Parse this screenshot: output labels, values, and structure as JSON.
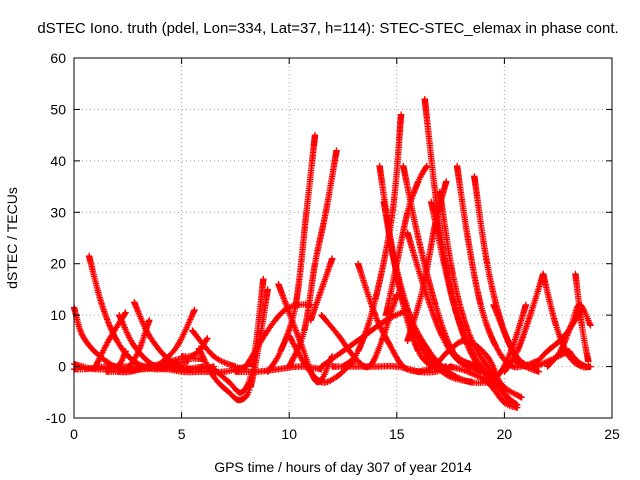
{
  "chart_data": {
    "type": "scatter",
    "title": "dSTEC Iono. truth (pdel, Lon=334, Lat=37, h=114): STEC-STEC_elemax in phase cont.",
    "xlabel": "GPS time / hours of day 307 of year 2014",
    "ylabel": "dSTEC  / TECUs",
    "xlim": [
      0,
      25
    ],
    "ylim": [
      -10,
      60
    ],
    "xticks": [
      "0",
      "5",
      "10",
      "15",
      "20",
      "25"
    ],
    "yticks": [
      "-10",
      "0",
      "10",
      "20",
      "30",
      "40",
      "50",
      "60"
    ],
    "grid": true,
    "marker": "+",
    "color": "#ff0000",
    "arcs": [
      {
        "x": [
          0.0,
          1.0,
          2.0,
          2.4
        ],
        "y": [
          0.5,
          -0.5,
          0,
          3
        ]
      },
      {
        "x": [
          0.0,
          0.5,
          1.5,
          2.5,
          3.5
        ],
        "y": [
          -0.5,
          -0.5,
          0,
          0,
          0
        ]
      },
      {
        "x": [
          0.0,
          0.4,
          1.2,
          2.2,
          3.2,
          4.5
        ],
        "y": [
          11.5,
          6,
          2,
          -0.5,
          -0.5,
          0
        ]
      },
      {
        "x": [
          0.7,
          1.3,
          2.0,
          2.8,
          3.8,
          4.8
        ],
        "y": [
          21.5,
          12,
          5,
          1,
          -0.5,
          0
        ]
      },
      {
        "x": [
          1.0,
          1.6,
          2.4
        ],
        "y": [
          0,
          5,
          10.5
        ]
      },
      {
        "x": [
          1.5,
          2.0,
          2.6,
          3.5,
          4.5,
          5.3
        ],
        "y": [
          -1,
          -1,
          -1,
          0,
          0.5,
          1
        ]
      },
      {
        "x": [
          2.1,
          2.8,
          3.8,
          5.0,
          6.0
        ],
        "y": [
          10,
          4,
          0,
          -0.5,
          0
        ]
      },
      {
        "x": [
          2.8,
          3.5,
          4.5,
          5.5,
          6.5
        ],
        "y": [
          12.5,
          6,
          1,
          -0.5,
          0
        ]
      },
      {
        "x": [
          2.5,
          3.0,
          3.5
        ],
        "y": [
          -0.5,
          3,
          9
        ]
      },
      {
        "x": [
          3.0,
          4.0,
          5.0,
          6.0
        ],
        "y": [
          -0.5,
          0.5,
          1.5,
          1.5
        ]
      },
      {
        "x": [
          4.0,
          4.8,
          5.6
        ],
        "y": [
          0.5,
          4,
          11
        ]
      },
      {
        "x": [
          4.0,
          5.0,
          6.0,
          7.0,
          8.0
        ],
        "y": [
          0,
          -1,
          -1,
          -1,
          0
        ]
      },
      {
        "x": [
          5.0,
          5.4,
          5.8,
          6.2
        ],
        "y": [
          2,
          2,
          3,
          5.5
        ]
      },
      {
        "x": [
          5.8,
          6.5,
          7.2,
          7.7,
          8.2,
          8.7,
          9.0
        ],
        "y": [
          3.5,
          -2,
          -5,
          -6.5,
          -4,
          7,
          15
        ]
      },
      {
        "x": [
          5.5,
          6.5,
          7.5,
          8.0
        ],
        "y": [
          7,
          2,
          0,
          -0.5
        ]
      },
      {
        "x": [
          6.5,
          7.2,
          7.8,
          8.3,
          8.8
        ],
        "y": [
          -0.5,
          -3,
          -5,
          0,
          17
        ]
      },
      {
        "x": [
          7.5,
          8.5,
          9.5,
          10.5,
          11.5
        ],
        "y": [
          -1,
          -1,
          -0.5,
          0,
          -0.5
        ]
      },
      {
        "x": [
          8.0,
          9.0,
          9.8,
          10.5,
          11.0
        ],
        "y": [
          0,
          7,
          11,
          12,
          12
        ]
      },
      {
        "x": [
          9.0,
          9.6,
          10.3,
          10.8,
          11.2
        ],
        "y": [
          -1,
          3,
          12,
          30,
          45
        ]
      },
      {
        "x": [
          9.5,
          10.5,
          11.3,
          12.0
        ],
        "y": [
          16,
          5,
          -3,
          2
        ]
      },
      {
        "x": [
          10.0,
          10.7,
          11.2,
          11.7,
          12.2
        ],
        "y": [
          0,
          7,
          20,
          30,
          42
        ]
      },
      {
        "x": [
          10.0,
          10.8,
          11.5,
          12.2,
          13.0
        ],
        "y": [
          6,
          0,
          -3,
          -2,
          1
        ]
      },
      {
        "x": [
          11.0,
          11.5,
          12.0
        ],
        "y": [
          9,
          15,
          21
        ]
      },
      {
        "x": [
          11.5,
          12.3,
          13.0,
          13.7,
          14.3,
          15.0
        ],
        "y": [
          10,
          6,
          2,
          0,
          5,
          14
        ]
      },
      {
        "x": [
          11.5,
          12.5,
          13.5,
          14.5,
          15.5
        ],
        "y": [
          0,
          3,
          6,
          9,
          11
        ]
      },
      {
        "x": [
          12.0,
          13.0,
          14.0,
          15.0,
          16.0
        ],
        "y": [
          0,
          0,
          0,
          0,
          -1
        ]
      },
      {
        "x": [
          12.5,
          13.2,
          14.0,
          14.8,
          15.2
        ],
        "y": [
          0,
          3,
          13,
          30,
          49
        ]
      },
      {
        "x": [
          13.2,
          14.0,
          14.7,
          15.3,
          16.0,
          16.8,
          17.5
        ],
        "y": [
          20,
          10,
          4,
          0,
          -1,
          -1,
          0
        ]
      },
      {
        "x": [
          14.2,
          14.7,
          15.3,
          16.0,
          16.7,
          17.3
        ],
        "y": [
          39,
          25,
          12,
          3,
          0,
          0
        ]
      },
      {
        "x": [
          14.4,
          14.8,
          15.3,
          15.9,
          16.6,
          17.5,
          18.5
        ],
        "y": [
          32,
          22,
          13,
          6,
          1,
          -2,
          -3
        ]
      },
      {
        "x": [
          14.5,
          15.0,
          15.5,
          16.0,
          16.4
        ],
        "y": [
          10,
          20,
          30,
          36,
          39
        ]
      },
      {
        "x": [
          15.3,
          16.0,
          16.8,
          17.6,
          18.6
        ],
        "y": [
          39,
          25,
          12,
          3,
          0
        ]
      },
      {
        "x": [
          15.5,
          16.3,
          17.1,
          17.9,
          18.9
        ],
        "y": [
          26,
          15,
          6,
          1,
          -1
        ]
      },
      {
        "x": [
          14.8,
          15.6,
          16.5,
          17.4,
          18.4,
          19.5
        ],
        "y": [
          22,
          10,
          3,
          -1,
          -3,
          -3
        ]
      },
      {
        "x": [
          15.5,
          16.2,
          16.8,
          17.3
        ],
        "y": [
          5,
          15,
          28,
          36
        ]
      },
      {
        "x": [
          16.3,
          16.9,
          17.5,
          18.2,
          19.0,
          20.0
        ],
        "y": [
          52,
          30,
          15,
          5,
          -1,
          -5
        ]
      },
      {
        "x": [
          16.6,
          17.2,
          17.8,
          18.6,
          19.5,
          20.3
        ],
        "y": [
          32,
          20,
          10,
          2,
          -3,
          -7
        ]
      },
      {
        "x": [
          16.0,
          16.7,
          17.4,
          18.2,
          19.2,
          20.0,
          20.6
        ],
        "y": [
          -1,
          0,
          3,
          5,
          2,
          -5,
          -7.5
        ]
      },
      {
        "x": [
          17.0,
          17.6,
          18.3,
          19.2,
          20.0,
          20.8
        ],
        "y": [
          34,
          18,
          7,
          0,
          -4,
          -6
        ]
      },
      {
        "x": [
          17.8,
          18.3,
          18.9,
          19.6,
          20.4,
          21.5
        ],
        "y": [
          39,
          25,
          12,
          4,
          0,
          1
        ]
      },
      {
        "x": [
          18.6,
          19.2,
          19.9,
          20.7,
          21.6
        ],
        "y": [
          37,
          20,
          8,
          1,
          -1
        ]
      },
      {
        "x": [
          17.5,
          18.3,
          19.2,
          20.0,
          20.6
        ],
        "y": [
          0,
          -1,
          -3,
          -7,
          -8
        ]
      },
      {
        "x": [
          18.0,
          18.8,
          19.6,
          20.3,
          21.0
        ],
        "y": [
          1,
          0,
          -2,
          3,
          12
        ]
      },
      {
        "x": [
          19.5,
          20.4,
          21.2,
          22.0,
          23.0
        ],
        "y": [
          12,
          3,
          0,
          1,
          3
        ]
      },
      {
        "x": [
          20.0,
          20.6,
          21.2,
          21.8
        ],
        "y": [
          -1,
          3,
          10,
          18
        ]
      },
      {
        "x": [
          20.5,
          21.2,
          22.0,
          22.8,
          23.6
        ],
        "y": [
          1,
          0,
          3,
          6,
          11
        ]
      },
      {
        "x": [
          21.8,
          22.4,
          23.0,
          23.6,
          24.0
        ],
        "y": [
          18,
          8,
          2,
          0,
          0
        ]
      },
      {
        "x": [
          22.0,
          22.6,
          23.1,
          23.5,
          24.0
        ],
        "y": [
          0,
          3,
          8,
          12,
          8
        ]
      },
      {
        "x": [
          23.3,
          23.6,
          23.9
        ],
        "y": [
          18,
          8,
          1
        ]
      },
      {
        "x": [
          23.0,
          23.4,
          23.8,
          24.0
        ],
        "y": [
          3,
          1,
          0,
          0
        ]
      }
    ]
  }
}
